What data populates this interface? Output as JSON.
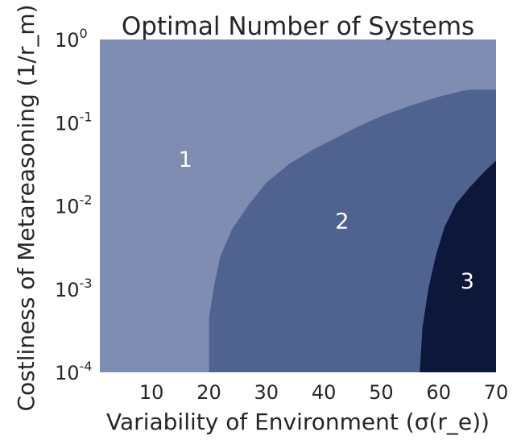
{
  "chart_data": {
    "type": "contour",
    "title": "Optimal Number of Systems",
    "xlabel": "Variability of Environment (σ(r_e))",
    "ylabel": "Costliness of Metareasoning (1/r_m)",
    "xlim": [
      1,
      70
    ],
    "ylim": [
      0.0001,
      1
    ],
    "yscale": "log",
    "grid": false,
    "x_ticks": [
      {
        "value": 10,
        "label": "10"
      },
      {
        "value": 20,
        "label": "20"
      },
      {
        "value": 30,
        "label": "30"
      },
      {
        "value": 40,
        "label": "40"
      },
      {
        "value": 50,
        "label": "50"
      },
      {
        "value": 60,
        "label": "60"
      },
      {
        "value": 70,
        "label": "70"
      }
    ],
    "y_ticks": [
      {
        "value": 1,
        "base": "10",
        "exp": "0"
      },
      {
        "value": 0.1,
        "base": "10",
        "exp": "-1"
      },
      {
        "value": 0.01,
        "base": "10",
        "exp": "-2"
      },
      {
        "value": 0.001,
        "base": "10",
        "exp": "-3"
      },
      {
        "value": 0.0001,
        "base": "10",
        "exp": "-4"
      }
    ],
    "regions": [
      {
        "label": "1",
        "color": "#7f8db2",
        "label_at": [
          15.9,
          0.035
        ]
      },
      {
        "label": "2",
        "color": "#506290",
        "label_at": [
          43.2,
          0.0063
        ]
      },
      {
        "label": "3",
        "color": "#0c1739",
        "label_at": [
          65.0,
          0.0012
        ]
      }
    ],
    "boundaries": [
      {
        "between": [
          "1",
          "2"
        ],
        "points": [
          [
            20,
            0.0001
          ],
          [
            20,
            0.00045
          ],
          [
            21,
            0.0012
          ],
          [
            22,
            0.0025
          ],
          [
            24,
            0.0052
          ],
          [
            27,
            0.0105
          ],
          [
            30,
            0.019
          ],
          [
            34,
            0.032
          ],
          [
            38,
            0.047
          ],
          [
            42,
            0.065
          ],
          [
            46,
            0.09
          ],
          [
            50,
            0.12
          ],
          [
            55,
            0.16
          ],
          [
            60,
            0.205
          ],
          [
            64,
            0.24
          ],
          [
            65.5,
            0.25
          ],
          [
            70,
            0.25
          ]
        ]
      },
      {
        "between": [
          "2",
          "3"
        ],
        "points": [
          [
            56.7,
            0.0001
          ],
          [
            57.2,
            0.00035
          ],
          [
            58.2,
            0.001
          ],
          [
            59.5,
            0.0025
          ],
          [
            61,
            0.0055
          ],
          [
            63,
            0.0105
          ],
          [
            65.5,
            0.017
          ],
          [
            68,
            0.026
          ],
          [
            70,
            0.035
          ]
        ]
      }
    ]
  }
}
